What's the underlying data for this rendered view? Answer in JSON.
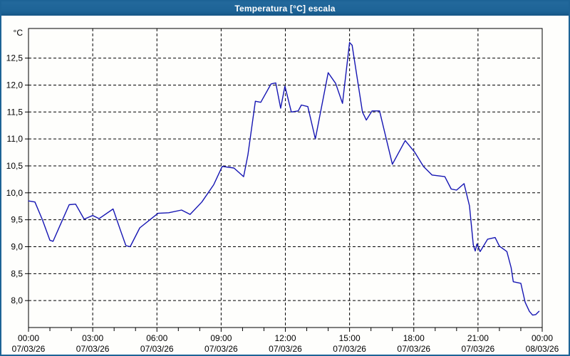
{
  "window": {
    "title": "Temperatura [°C] escala"
  },
  "colors": {
    "titlebar_bg": "#1d6396",
    "frame": "#1d6396",
    "plot_background": "#fefefc",
    "axis": "#000000",
    "grid": "#000000",
    "line": "#1515b3",
    "title_text": "#ffffff"
  },
  "chart_data": {
    "type": "line",
    "title": "Temperatura [°C] escala",
    "xlabel": "",
    "ylabel": "°C",
    "legend_position": "none",
    "grid": "dashed",
    "y_axis": {
      "unit_label": "°C",
      "min": 7.5,
      "max": 13.05,
      "tick_min": 8.0,
      "tick_max": 12.5,
      "tick_step": 0.5,
      "decimal_separator": ",",
      "tick_labels": [
        "8,0",
        "8,5",
        "9,0",
        "9,5",
        "10,0",
        "10,5",
        "11,0",
        "11,5",
        "12,0",
        "12,5"
      ]
    },
    "x_axis": {
      "range_hours": [
        0,
        24
      ],
      "major_tick_every_hours": 3,
      "minor_tick_every_hours": 1,
      "tick_labels": [
        {
          "hour": 0,
          "time": "00:00",
          "date": "07/03/26"
        },
        {
          "hour": 3,
          "time": "03:00",
          "date": "07/03/26"
        },
        {
          "hour": 6,
          "time": "06:00",
          "date": "07/03/26"
        },
        {
          "hour": 9,
          "time": "09:00",
          "date": "07/03/26"
        },
        {
          "hour": 12,
          "time": "12:00",
          "date": "07/03/26"
        },
        {
          "hour": 15,
          "time": "15:00",
          "date": "07/03/26"
        },
        {
          "hour": 18,
          "time": "18:00",
          "date": "07/03/26"
        },
        {
          "hour": 21,
          "time": "21:00",
          "date": "07/03/26"
        },
        {
          "hour": 24,
          "time": "00:00",
          "date": "08/03/26"
        }
      ]
    },
    "series": [
      {
        "name": "Temperatura [°C]",
        "color": "#1515b3",
        "points_hour_temp": [
          [
            0.0,
            9.85
          ],
          [
            0.3,
            9.83
          ],
          [
            0.65,
            9.5
          ],
          [
            1.0,
            9.12
          ],
          [
            1.15,
            9.1
          ],
          [
            1.5,
            9.42
          ],
          [
            1.9,
            9.78
          ],
          [
            2.2,
            9.79
          ],
          [
            2.6,
            9.51
          ],
          [
            3.0,
            9.58
          ],
          [
            3.3,
            9.52
          ],
          [
            3.95,
            9.7
          ],
          [
            4.3,
            9.3
          ],
          [
            4.55,
            9.02
          ],
          [
            4.75,
            9.0
          ],
          [
            5.2,
            9.35
          ],
          [
            6.05,
            9.62
          ],
          [
            6.55,
            9.63
          ],
          [
            7.15,
            9.68
          ],
          [
            7.55,
            9.6
          ],
          [
            8.1,
            9.83
          ],
          [
            8.65,
            10.15
          ],
          [
            9.05,
            10.49
          ],
          [
            9.6,
            10.46
          ],
          [
            10.05,
            10.3
          ],
          [
            10.25,
            10.7
          ],
          [
            10.6,
            11.7
          ],
          [
            10.85,
            11.68
          ],
          [
            11.33,
            12.02
          ],
          [
            11.55,
            12.04
          ],
          [
            11.78,
            11.57
          ],
          [
            11.98,
            11.98
          ],
          [
            12.28,
            11.5
          ],
          [
            12.6,
            11.52
          ],
          [
            12.75,
            11.63
          ],
          [
            13.05,
            11.6
          ],
          [
            13.4,
            11.0
          ],
          [
            14.0,
            12.23
          ],
          [
            14.35,
            12.03
          ],
          [
            14.67,
            11.66
          ],
          [
            15.0,
            12.79
          ],
          [
            15.12,
            12.74
          ],
          [
            15.6,
            11.5
          ],
          [
            15.78,
            11.35
          ],
          [
            16.05,
            11.52
          ],
          [
            16.4,
            11.52
          ],
          [
            17.0,
            10.53
          ],
          [
            17.6,
            10.97
          ],
          [
            18.05,
            10.75
          ],
          [
            18.45,
            10.49
          ],
          [
            18.85,
            10.33
          ],
          [
            19.45,
            10.3
          ],
          [
            19.75,
            10.07
          ],
          [
            20.0,
            10.05
          ],
          [
            20.35,
            10.17
          ],
          [
            20.6,
            9.76
          ],
          [
            20.78,
            9.03
          ],
          [
            20.87,
            8.92
          ],
          [
            20.95,
            9.05
          ],
          [
            21.1,
            8.91
          ],
          [
            21.45,
            9.14
          ],
          [
            21.8,
            9.17
          ],
          [
            22.0,
            9.01
          ],
          [
            22.35,
            8.91
          ],
          [
            22.55,
            8.61
          ],
          [
            22.65,
            8.35
          ],
          [
            23.0,
            8.32
          ],
          [
            23.2,
            7.97
          ],
          [
            23.4,
            7.8
          ],
          [
            23.55,
            7.73
          ],
          [
            23.7,
            7.74
          ],
          [
            23.85,
            7.8
          ]
        ]
      }
    ]
  }
}
